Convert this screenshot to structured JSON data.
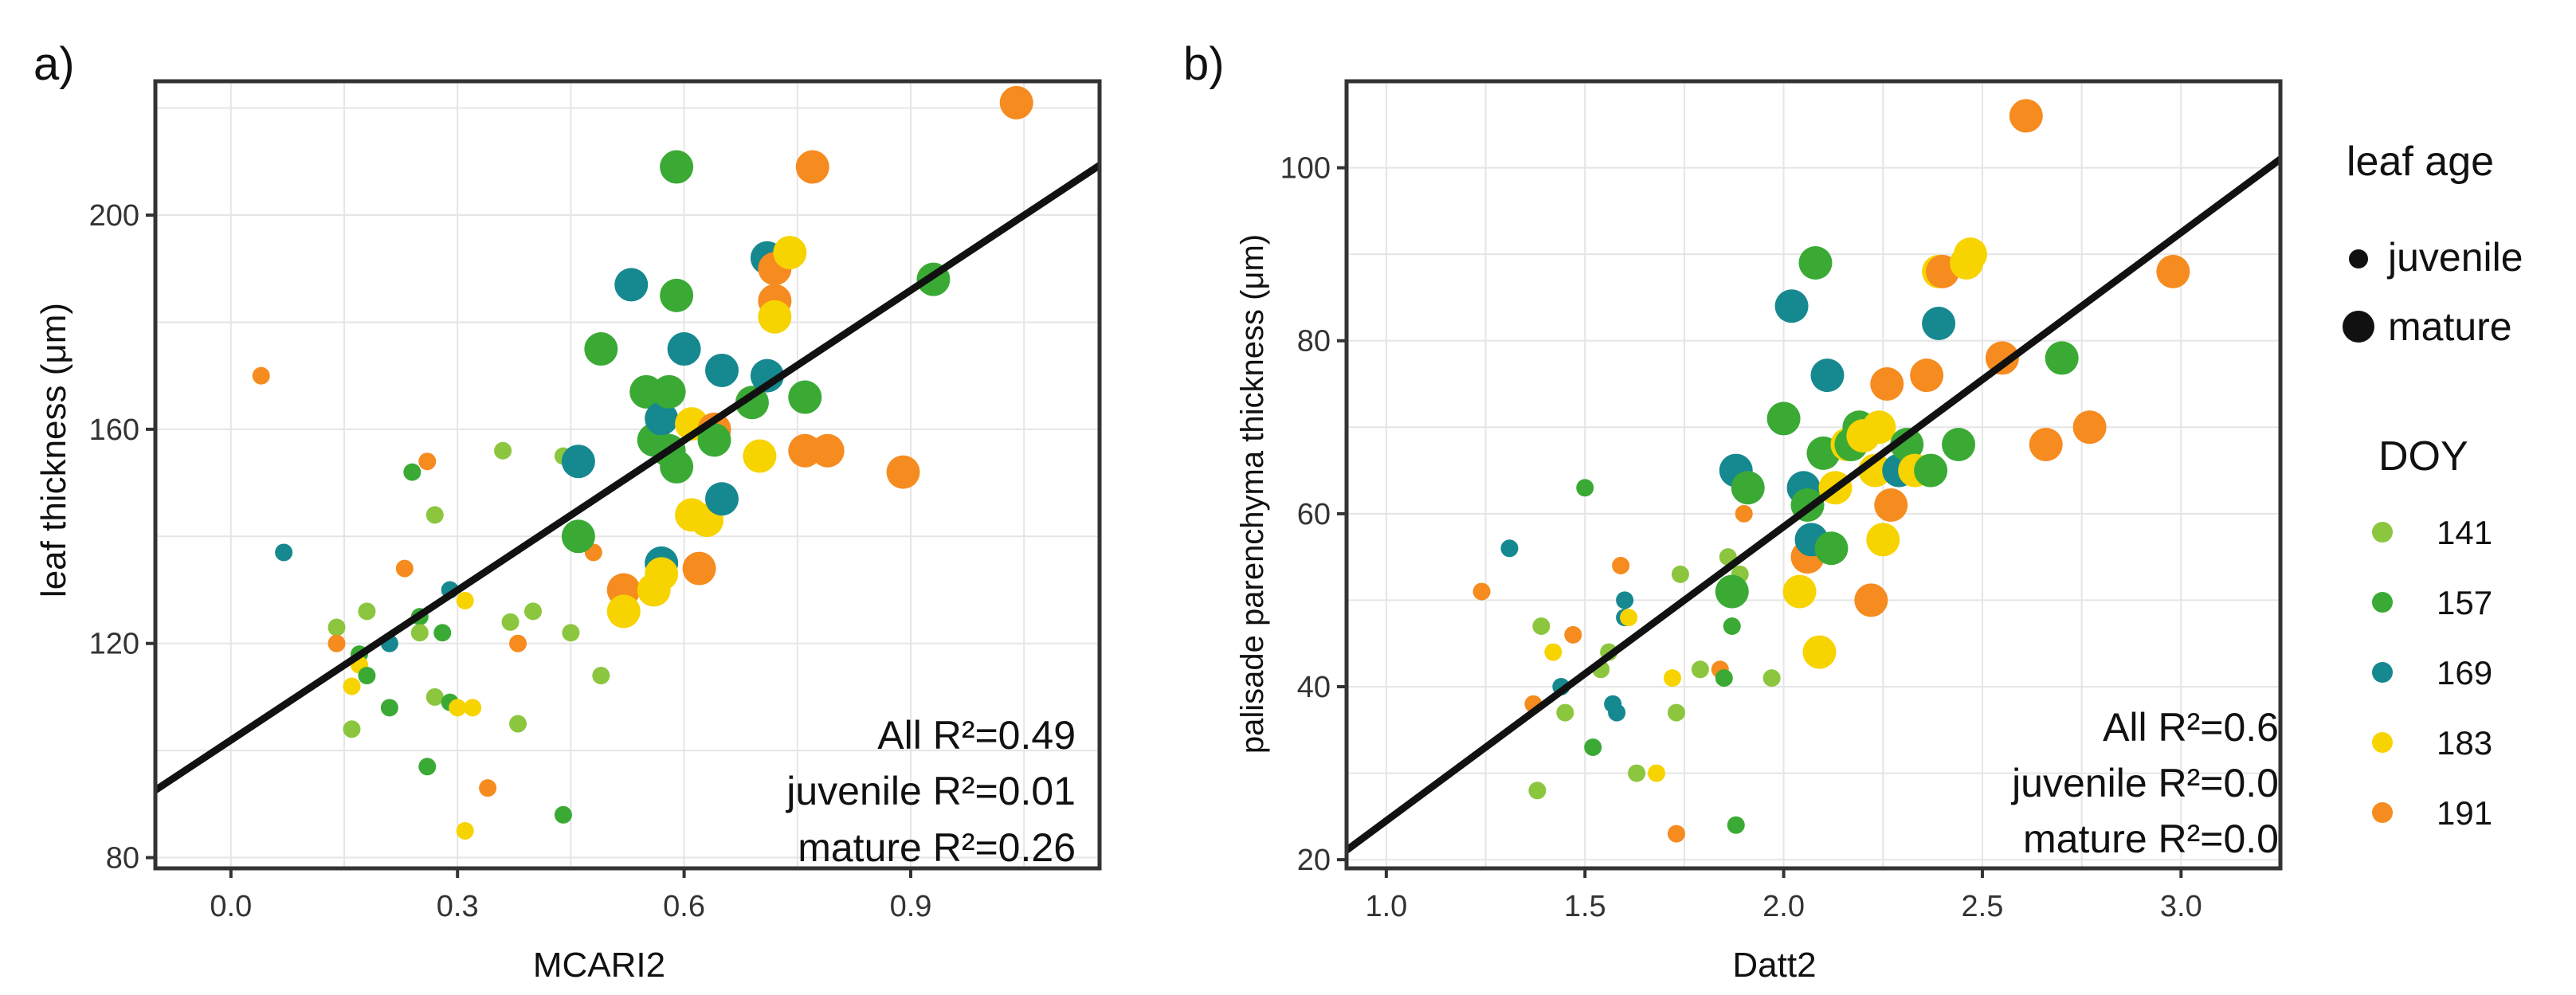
{
  "colors": {
    "doy141": "#8cc63f",
    "doy157": "#3aaa35",
    "doy169": "#16888f",
    "doy183": "#f7d300",
    "doy191": "#f68b1f",
    "fit": "#111111",
    "grid": "#e5e5e5",
    "frame": "#333333"
  },
  "legend": {
    "size_title": "leaf age",
    "size_items": [
      {
        "label": "juvenile",
        "size": "juvenile"
      },
      {
        "label": "mature",
        "size": "mature"
      }
    ],
    "color_title": "DOY",
    "color_items": [
      {
        "label": "141",
        "color": "#8cc63f"
      },
      {
        "label": "157",
        "color": "#3aaa35"
      },
      {
        "label": "169",
        "color": "#16888f"
      },
      {
        "label": "183",
        "color": "#f7d300"
      },
      {
        "label": "191",
        "color": "#f68b1f"
      }
    ]
  },
  "chart_data": [
    {
      "type": "scatter",
      "panel_label": "a)",
      "xlabel": "MCARI2",
      "ylabel": "leaf thickness (μm)",
      "xlim": [
        -0.1,
        1.15
      ],
      "ylim": [
        78,
        225
      ],
      "xticks": [
        0.0,
        0.3,
        0.6,
        0.9
      ],
      "xtick_labels": [
        "0.0",
        "0.3",
        "0.6",
        "0.9"
      ],
      "yticks": [
        80,
        120,
        160,
        200
      ],
      "ytick_labels": [
        "80",
        "120",
        "160",
        "200"
      ],
      "fit_line": {
        "x": [
          -0.1,
          1.15
        ],
        "y": [
          92.6,
          209.3
        ]
      },
      "annotations": [
        "All R²=0.49",
        "juvenile R²=0.01",
        "mature R²=0.26"
      ],
      "points": [
        [
          0.04,
          170,
          "j",
          "191"
        ],
        [
          0.07,
          137,
          "j",
          "169"
        ],
        [
          0.14,
          123,
          "j",
          "141"
        ],
        [
          0.14,
          120,
          "j",
          "191"
        ],
        [
          0.16,
          104,
          "j",
          "141"
        ],
        [
          0.16,
          112,
          "j",
          "183"
        ],
        [
          0.17,
          118,
          "j",
          "157"
        ],
        [
          0.17,
          116,
          "j",
          "183"
        ],
        [
          0.18,
          126,
          "j",
          "141"
        ],
        [
          0.18,
          114,
          "j",
          "157"
        ],
        [
          0.21,
          108,
          "j",
          "157"
        ],
        [
          0.21,
          120,
          "j",
          "169"
        ],
        [
          0.23,
          134,
          "j",
          "191"
        ],
        [
          0.24,
          152,
          "j",
          "157"
        ],
        [
          0.25,
          125,
          "j",
          "157"
        ],
        [
          0.25,
          122,
          "j",
          "141"
        ],
        [
          0.26,
          154,
          "j",
          "191"
        ],
        [
          0.26,
          97,
          "j",
          "157"
        ],
        [
          0.27,
          144,
          "j",
          "141"
        ],
        [
          0.27,
          110,
          "j",
          "141"
        ],
        [
          0.28,
          122,
          "j",
          "157"
        ],
        [
          0.29,
          130,
          "j",
          "169"
        ],
        [
          0.29,
          109,
          "j",
          "157"
        ],
        [
          0.3,
          108,
          "j",
          "183"
        ],
        [
          0.31,
          128,
          "j",
          "183"
        ],
        [
          0.31,
          85,
          "j",
          "183"
        ],
        [
          0.32,
          108,
          "j",
          "183"
        ],
        [
          0.34,
          93,
          "j",
          "191"
        ],
        [
          0.36,
          156,
          "j",
          "141"
        ],
        [
          0.37,
          124,
          "j",
          "141"
        ],
        [
          0.38,
          105,
          "j",
          "141"
        ],
        [
          0.38,
          120,
          "j",
          "191"
        ],
        [
          0.4,
          126,
          "j",
          "141"
        ],
        [
          0.44,
          155,
          "j",
          "141"
        ],
        [
          0.44,
          88,
          "j",
          "157"
        ],
        [
          0.45,
          122,
          "j",
          "141"
        ],
        [
          0.47,
          140,
          "j",
          "141"
        ],
        [
          0.48,
          137,
          "j",
          "191"
        ],
        [
          0.49,
          114,
          "j",
          "141"
        ],
        [
          0.46,
          154,
          "m",
          "169"
        ],
        [
          0.46,
          140,
          "m",
          "157"
        ],
        [
          0.49,
          175,
          "m",
          "157"
        ],
        [
          0.52,
          130,
          "m",
          "191"
        ],
        [
          0.52,
          126,
          "m",
          "183"
        ],
        [
          0.53,
          187,
          "m",
          "169"
        ],
        [
          0.55,
          167,
          "m",
          "157"
        ],
        [
          0.56,
          158,
          "m",
          "157"
        ],
        [
          0.56,
          130,
          "m",
          "183"
        ],
        [
          0.57,
          135,
          "m",
          "169"
        ],
        [
          0.57,
          162,
          "m",
          "169"
        ],
        [
          0.57,
          133,
          "m",
          "183"
        ],
        [
          0.58,
          167,
          "m",
          "157"
        ],
        [
          0.58,
          156,
          "m",
          "157"
        ],
        [
          0.59,
          185,
          "m",
          "157"
        ],
        [
          0.59,
          209,
          "m",
          "157"
        ],
        [
          0.59,
          153,
          "m",
          "157"
        ],
        [
          0.6,
          175,
          "m",
          "169"
        ],
        [
          0.61,
          161,
          "m",
          "183"
        ],
        [
          0.61,
          144,
          "m",
          "183"
        ],
        [
          0.62,
          134,
          "m",
          "191"
        ],
        [
          0.63,
          143,
          "m",
          "183"
        ],
        [
          0.64,
          160,
          "m",
          "191"
        ],
        [
          0.64,
          158,
          "m",
          "157"
        ],
        [
          0.65,
          171,
          "m",
          "169"
        ],
        [
          0.65,
          147,
          "m",
          "169"
        ],
        [
          0.69,
          165,
          "m",
          "157"
        ],
        [
          0.7,
          155,
          "m",
          "183"
        ],
        [
          0.71,
          192,
          "m",
          "169"
        ],
        [
          0.71,
          170,
          "m",
          "169"
        ],
        [
          0.72,
          190,
          "m",
          "191"
        ],
        [
          0.72,
          184,
          "m",
          "191"
        ],
        [
          0.72,
          181,
          "m",
          "183"
        ],
        [
          0.74,
          193,
          "m",
          "183"
        ],
        [
          0.76,
          156,
          "m",
          "191"
        ],
        [
          0.76,
          166,
          "m",
          "157"
        ],
        [
          0.77,
          209,
          "m",
          "191"
        ],
        [
          0.79,
          156,
          "m",
          "191"
        ],
        [
          0.89,
          152,
          "m",
          "191"
        ],
        [
          0.93,
          188,
          "m",
          "157"
        ],
        [
          1.04,
          221,
          "m",
          "191"
        ]
      ]
    },
    {
      "type": "scatter",
      "panel_label": "b)",
      "xlabel": "Datt2",
      "ylabel": "palisade parenchyma thickness (μm)",
      "xlim": [
        0.9,
        3.25
      ],
      "ylim": [
        19,
        110
      ],
      "xticks": [
        1.0,
        1.5,
        2.0,
        2.5,
        3.0
      ],
      "xtick_labels": [
        "1.0",
        "1.5",
        "2.0",
        "2.5",
        "3.0"
      ],
      "yticks": [
        20,
        40,
        60,
        80,
        100
      ],
      "ytick_labels": [
        "20",
        "40",
        "60",
        "80",
        "100"
      ],
      "fit_line": {
        "x": [
          0.9,
          3.25
        ],
        "y": [
          21.1,
          101.0
        ]
      },
      "annotations": [
        "All R²=0.6",
        "juvenile R²=0.0",
        "mature R²=0.0"
      ],
      "points": [
        [
          1.24,
          51,
          "j",
          "191"
        ],
        [
          1.31,
          56,
          "j",
          "169"
        ],
        [
          1.37,
          38,
          "j",
          "191"
        ],
        [
          1.38,
          28,
          "j",
          "141"
        ],
        [
          1.39,
          47,
          "j",
          "141"
        ],
        [
          1.42,
          44,
          "j",
          "183"
        ],
        [
          1.44,
          40,
          "j",
          "169"
        ],
        [
          1.45,
          37,
          "j",
          "141"
        ],
        [
          1.47,
          46,
          "j",
          "191"
        ],
        [
          1.5,
          63,
          "j",
          "157"
        ],
        [
          1.52,
          33,
          "j",
          "157"
        ],
        [
          1.54,
          42,
          "j",
          "141"
        ],
        [
          1.56,
          44,
          "j",
          "141"
        ],
        [
          1.57,
          38,
          "j",
          "169"
        ],
        [
          1.58,
          37,
          "j",
          "169"
        ],
        [
          1.59,
          54,
          "j",
          "191"
        ],
        [
          1.6,
          48,
          "j",
          "169"
        ],
        [
          1.6,
          50,
          "j",
          "169"
        ],
        [
          1.61,
          48,
          "j",
          "183"
        ],
        [
          1.63,
          30,
          "j",
          "141"
        ],
        [
          1.68,
          30,
          "j",
          "183"
        ],
        [
          1.72,
          41,
          "j",
          "183"
        ],
        [
          1.73,
          37,
          "j",
          "141"
        ],
        [
          1.73,
          23,
          "j",
          "191"
        ],
        [
          1.74,
          53,
          "j",
          "141"
        ],
        [
          1.79,
          42,
          "j",
          "141"
        ],
        [
          1.84,
          42,
          "j",
          "191"
        ],
        [
          1.85,
          41,
          "j",
          "157"
        ],
        [
          1.86,
          55,
          "j",
          "141"
        ],
        [
          1.87,
          47,
          "j",
          "157"
        ],
        [
          1.88,
          24,
          "j",
          "157"
        ],
        [
          1.89,
          53,
          "j",
          "141"
        ],
        [
          1.9,
          60,
          "j",
          "191"
        ],
        [
          1.97,
          41,
          "j",
          "141"
        ],
        [
          1.87,
          51,
          "m",
          "157"
        ],
        [
          1.88,
          65,
          "m",
          "169"
        ],
        [
          1.91,
          63,
          "m",
          "157"
        ],
        [
          2.0,
          71,
          "m",
          "157"
        ],
        [
          2.02,
          84,
          "m",
          "169"
        ],
        [
          2.04,
          51,
          "m",
          "183"
        ],
        [
          2.05,
          63,
          "m",
          "169"
        ],
        [
          2.06,
          55,
          "m",
          "191"
        ],
        [
          2.06,
          61,
          "m",
          "157"
        ],
        [
          2.07,
          57,
          "m",
          "169"
        ],
        [
          2.08,
          89,
          "m",
          "157"
        ],
        [
          2.09,
          44,
          "m",
          "183"
        ],
        [
          2.1,
          67,
          "m",
          "157"
        ],
        [
          2.11,
          76,
          "m",
          "169"
        ],
        [
          2.12,
          56,
          "m",
          "157"
        ],
        [
          2.13,
          63,
          "m",
          "183"
        ],
        [
          2.16,
          68,
          "m",
          "183"
        ],
        [
          2.17,
          68,
          "m",
          "157"
        ],
        [
          2.19,
          70,
          "m",
          "157"
        ],
        [
          2.2,
          69,
          "m",
          "183"
        ],
        [
          2.22,
          50,
          "m",
          "191"
        ],
        [
          2.23,
          65,
          "m",
          "183"
        ],
        [
          2.24,
          70,
          "m",
          "183"
        ],
        [
          2.25,
          57,
          "m",
          "183"
        ],
        [
          2.26,
          75,
          "m",
          "191"
        ],
        [
          2.27,
          61,
          "m",
          "191"
        ],
        [
          2.29,
          65,
          "m",
          "169"
        ],
        [
          2.31,
          68,
          "m",
          "157"
        ],
        [
          2.33,
          65,
          "m",
          "183"
        ],
        [
          2.36,
          76,
          "m",
          "191"
        ],
        [
          2.37,
          65,
          "m",
          "157"
        ],
        [
          2.39,
          82,
          "m",
          "169"
        ],
        [
          2.39,
          88,
          "m",
          "183"
        ],
        [
          2.4,
          88,
          "m",
          "191"
        ],
        [
          2.44,
          68,
          "m",
          "157"
        ],
        [
          2.46,
          89,
          "m",
          "183"
        ],
        [
          2.47,
          90,
          "m",
          "183"
        ],
        [
          2.55,
          78,
          "m",
          "191"
        ],
        [
          2.61,
          106,
          "m",
          "191"
        ],
        [
          2.66,
          68,
          "m",
          "191"
        ],
        [
          2.7,
          78,
          "m",
          "157"
        ],
        [
          2.77,
          70,
          "m",
          "191"
        ],
        [
          2.98,
          88,
          "m",
          "191"
        ]
      ]
    }
  ]
}
